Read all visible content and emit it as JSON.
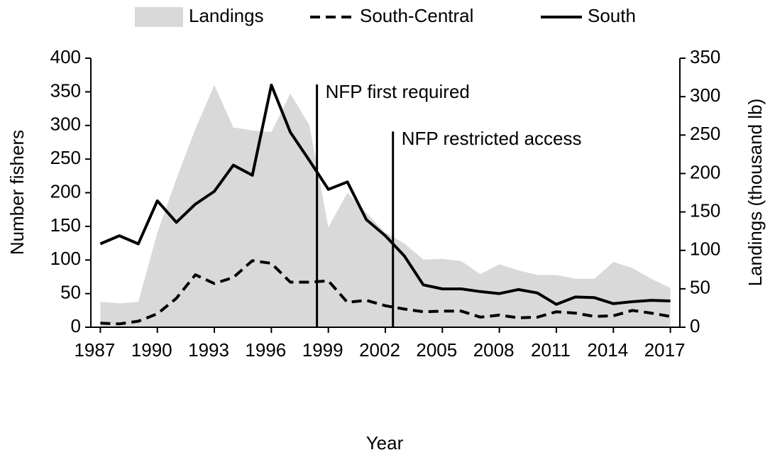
{
  "chart_data": {
    "type": "line",
    "x_label": "Year",
    "y_label": "Number fishers",
    "y2_label": "Landings (thousand lb)",
    "x": [
      1987,
      1988,
      1989,
      1990,
      1991,
      1992,
      1993,
      1994,
      1995,
      1996,
      1997,
      1998,
      1999,
      2000,
      2001,
      2002,
      2003,
      2004,
      2005,
      2006,
      2007,
      2008,
      2009,
      2010,
      2011,
      2012,
      2013,
      2014,
      2015,
      2016,
      2017
    ],
    "series": [
      {
        "name": "Landings",
        "kind": "area",
        "axis": "y2",
        "color": "#d9d9d9",
        "values": [
          33,
          31,
          33,
          123,
          193,
          258,
          315,
          260,
          256,
          254,
          304,
          263,
          130,
          175,
          149,
          123,
          109,
          88,
          89,
          86,
          69,
          82,
          74,
          68,
          68,
          63,
          63,
          85,
          77,
          63,
          51
        ]
      },
      {
        "name": "South-Central",
        "kind": "line",
        "style": "dashed",
        "color": "#000000",
        "values": [
          6,
          5,
          9,
          20,
          43,
          78,
          65,
          74,
          99,
          95,
          67,
          67,
          69,
          37,
          40,
          32,
          27,
          23,
          24,
          24,
          15,
          18,
          14,
          15,
          23,
          21,
          16,
          17,
          25,
          21,
          16
        ]
      },
      {
        "name": "South",
        "kind": "line",
        "style": "solid",
        "color": "#000000",
        "values": [
          124,
          136,
          124,
          188,
          156,
          183,
          202,
          241,
          226,
          360,
          290,
          248,
          205,
          216,
          160,
          136,
          106,
          63,
          57,
          57,
          53,
          50,
          56,
          51,
          34,
          45,
          44,
          35,
          38,
          40,
          39
        ]
      }
    ],
    "annotations": [
      {
        "text": "NFP first required",
        "x": 1998.4,
        "y": 361
      },
      {
        "text": "NFP restricted access",
        "x": 2002.4,
        "y": 291
      }
    ],
    "xlim": [
      1986.5,
      2017.5
    ],
    "xticks": [
      1987,
      1990,
      1993,
      1996,
      1999,
      2002,
      2005,
      2008,
      2011,
      2014,
      2017
    ],
    "ylim": [
      0,
      400
    ],
    "yticks": [
      0,
      50,
      100,
      150,
      200,
      250,
      300,
      350,
      400
    ],
    "y2lim": [
      0,
      350
    ],
    "y2ticks": [
      0,
      50,
      100,
      150,
      200,
      250,
      300,
      350
    ],
    "legend": "top",
    "grid": false
  }
}
